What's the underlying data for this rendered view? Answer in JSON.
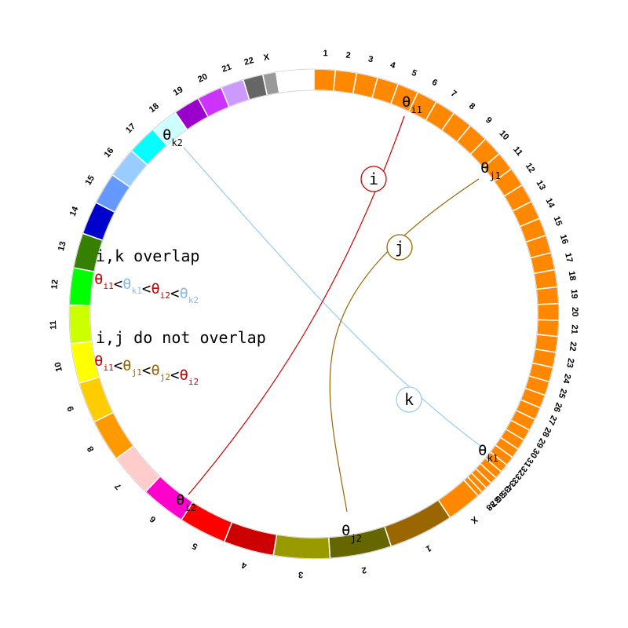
{
  "colors": {
    "i": "#cc0000",
    "j": "#996600",
    "k": "#99ccee",
    "k_text": "#88bbee",
    "lt": "#000000"
  },
  "ring": {
    "segments": [
      {
        "label": "1",
        "color": "#ff8800"
      },
      {
        "label": "2",
        "color": "#ff8800"
      },
      {
        "label": "3",
        "color": "#ff8800"
      },
      {
        "label": "4",
        "color": "#ff8800"
      },
      {
        "label": "5",
        "color": "#ff8800"
      },
      {
        "label": "6",
        "color": "#ff8800"
      },
      {
        "label": "7",
        "color": "#ff8800"
      },
      {
        "label": "8",
        "color": "#ff8800"
      },
      {
        "label": "9",
        "color": "#ff8800"
      },
      {
        "label": "10",
        "color": "#ff8800"
      },
      {
        "label": "11",
        "color": "#ff8800"
      },
      {
        "label": "12",
        "color": "#ff8800"
      },
      {
        "label": "13",
        "color": "#ff8800"
      },
      {
        "label": "14",
        "color": "#ff8800"
      },
      {
        "label": "15",
        "color": "#ff8800"
      },
      {
        "label": "16",
        "color": "#ff8800"
      },
      {
        "label": "17",
        "color": "#ff8800"
      },
      {
        "label": "18",
        "color": "#ff8800"
      },
      {
        "label": "19",
        "color": "#ff8800"
      },
      {
        "label": "20",
        "color": "#ff8800"
      },
      {
        "label": "21",
        "color": "#ff8800"
      },
      {
        "label": "22",
        "color": "#ff8800"
      },
      {
        "label": "23",
        "color": "#ff8800"
      },
      {
        "label": "24",
        "color": "#ff8800"
      },
      {
        "label": "25",
        "color": "#ff8800"
      },
      {
        "label": "26",
        "color": "#ff8800"
      },
      {
        "label": "27",
        "color": "#ff8800"
      },
      {
        "label": "28",
        "color": "#ff8800"
      },
      {
        "label": "29",
        "color": "#ff8800"
      },
      {
        "label": "30",
        "color": "#ff8800"
      },
      {
        "label": "31",
        "color": "#ff8800"
      },
      {
        "label": "32",
        "color": "#ff8800"
      },
      {
        "label": "33",
        "color": "#ff8800"
      },
      {
        "label": "34",
        "color": "#ff8800"
      },
      {
        "label": "35",
        "color": "#ff8800"
      },
      {
        "label": "36",
        "color": "#ff8800"
      },
      {
        "label": "37",
        "color": "#ff8800"
      },
      {
        "label": "38",
        "color": "#ff8800"
      },
      {
        "label": "X",
        "color": "#ff8800"
      },
      {
        "label": "1",
        "color": "#996600"
      },
      {
        "label": "2",
        "color": "#666600"
      },
      {
        "label": "3",
        "color": "#999900"
      },
      {
        "label": "4",
        "color": "#cc0000"
      },
      {
        "label": "5",
        "color": "#ff0000"
      },
      {
        "label": "6",
        "color": "#ff00cc"
      },
      {
        "label": "7",
        "color": "#ffcccc"
      },
      {
        "label": "8",
        "color": "#ff9900"
      },
      {
        "label": "9",
        "color": "#ffcc00"
      },
      {
        "label": "10",
        "color": "#ffff00"
      },
      {
        "label": "11",
        "color": "#ccff00"
      },
      {
        "label": "12",
        "color": "#00ff00"
      },
      {
        "label": "13",
        "color": "#358000"
      },
      {
        "label": "14",
        "color": "#0000cc"
      },
      {
        "label": "15",
        "color": "#6699ff"
      },
      {
        "label": "16",
        "color": "#99ccff"
      },
      {
        "label": "17",
        "color": "#00ffff"
      },
      {
        "label": "18",
        "color": "#ccffff"
      },
      {
        "label": "19",
        "color": "#9900cc"
      },
      {
        "label": "20",
        "color": "#cc33ff"
      },
      {
        "label": "21",
        "color": "#cc99ff"
      },
      {
        "label": "22",
        "color": "#666666"
      },
      {
        "label": "X",
        "color": "#999999"
      }
    ]
  },
  "links": {
    "i": {
      "letter": "i"
    },
    "j": {
      "letter": "j"
    },
    "k": {
      "letter": "k"
    }
  },
  "endpoints": [
    {
      "id": "i1",
      "symbol": "θ",
      "sub": "i1"
    },
    {
      "id": "i2",
      "symbol": "θ",
      "sub": "i2"
    },
    {
      "id": "j1",
      "symbol": "θ",
      "sub": "j1"
    },
    {
      "id": "j2",
      "symbol": "θ",
      "sub": "j2"
    },
    {
      "id": "k1",
      "symbol": "θ",
      "sub": "k1"
    },
    {
      "id": "k2",
      "symbol": "θ",
      "sub": "k2"
    }
  ],
  "legend": {
    "overlap_title": "i,k overlap",
    "overlap_expr": [
      {
        "t": "θ",
        "s": "i1",
        "c": "i"
      },
      {
        "t": "<",
        "c": "lt"
      },
      {
        "t": "θ",
        "s": "k1",
        "c": "k_text"
      },
      {
        "t": "<",
        "c": "lt"
      },
      {
        "t": "θ",
        "s": "i2",
        "c": "i"
      },
      {
        "t": "<",
        "c": "lt"
      },
      {
        "t": "θ",
        "s": "k2",
        "c": "k_text"
      }
    ],
    "no_overlap_title": "i,j do not overlap",
    "no_overlap_expr": [
      {
        "t": "θ",
        "s": "i1",
        "c": "i"
      },
      {
        "t": "<",
        "c": "lt"
      },
      {
        "t": "θ",
        "s": "j1",
        "c": "j"
      },
      {
        "t": "<",
        "c": "lt"
      },
      {
        "t": "θ",
        "s": "j2",
        "c": "j"
      },
      {
        "t": "<",
        "c": "lt"
      },
      {
        "t": "θ",
        "s": "i2",
        "c": "i"
      }
    ]
  }
}
